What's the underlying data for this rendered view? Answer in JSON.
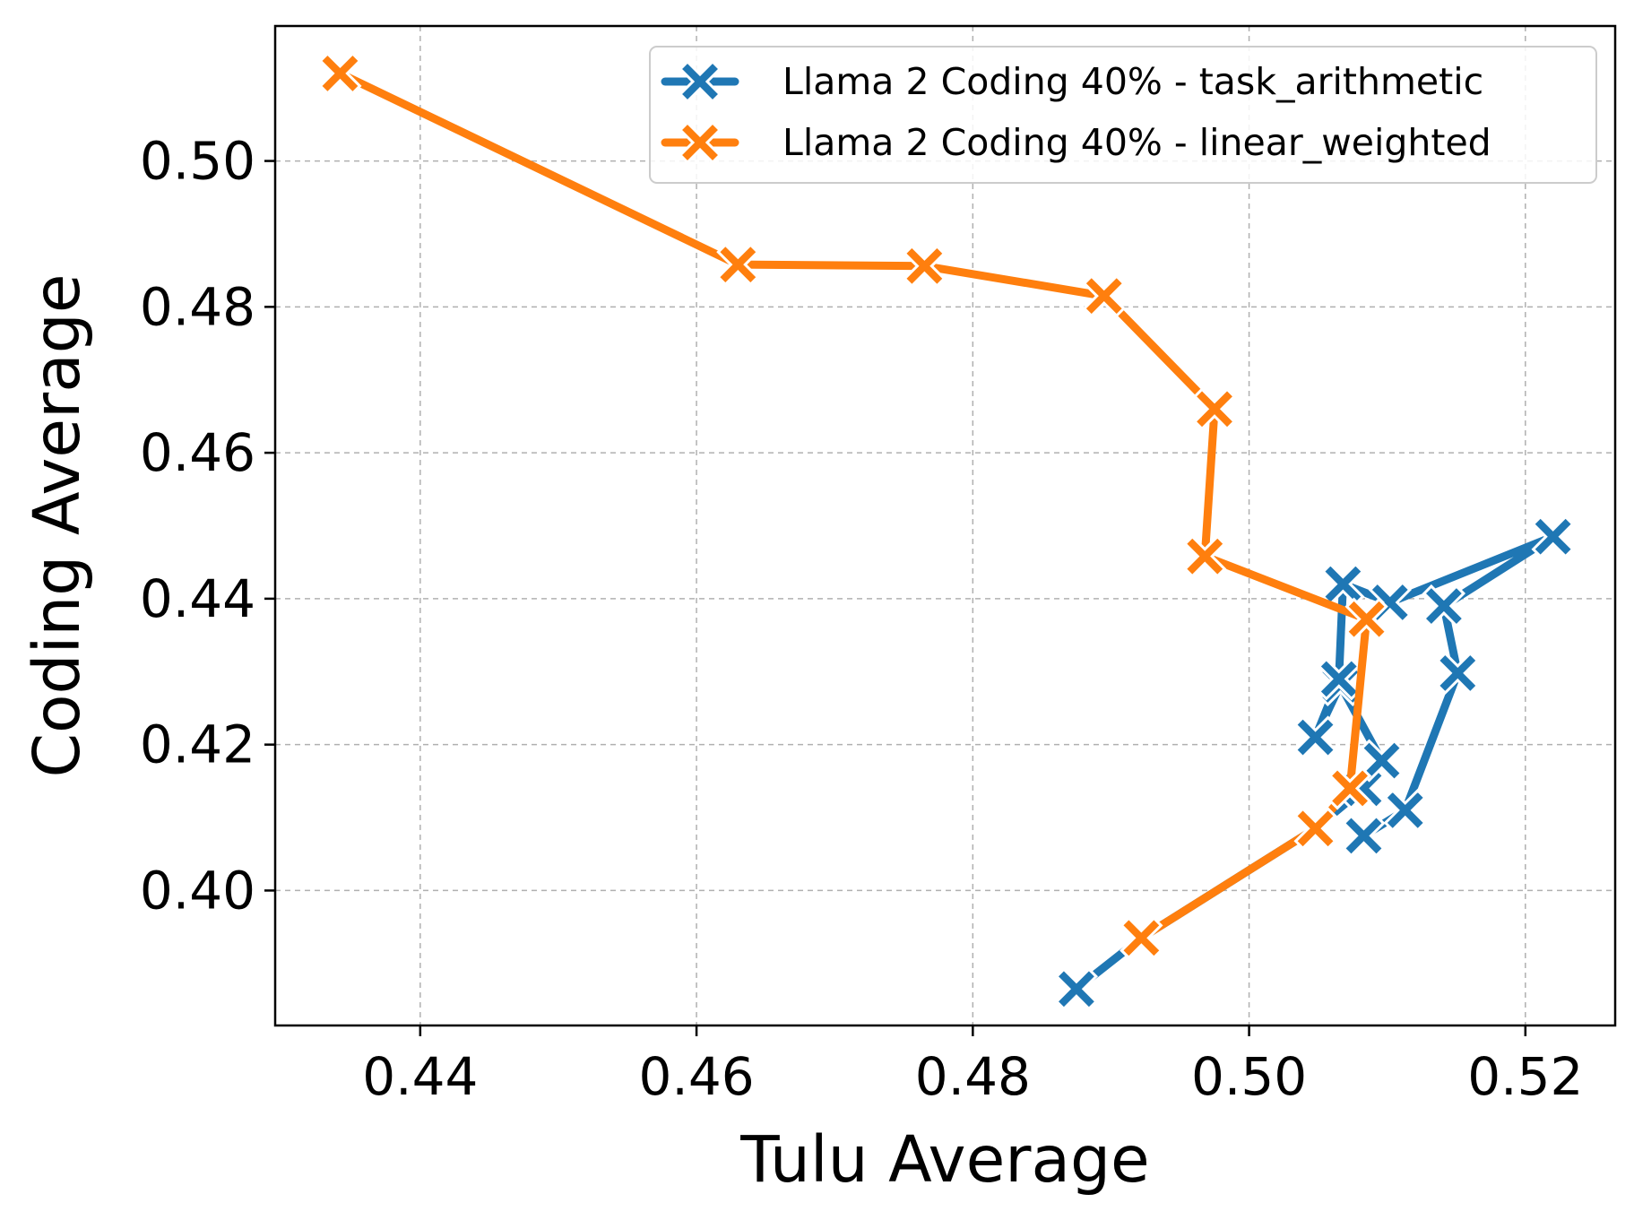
{
  "chart_data": {
    "type": "line",
    "xlabel": "Tulu Average",
    "ylabel": "Coding Average",
    "xlim": [
      0.4295,
      0.5265
    ],
    "ylim": [
      0.3815,
      0.5185
    ],
    "xticks": [
      0.44,
      0.46,
      0.48,
      0.5,
      0.52
    ],
    "xtick_labels": [
      "0.44",
      "0.46",
      "0.48",
      "0.50",
      "0.52"
    ],
    "yticks": [
      0.4,
      0.42,
      0.44,
      0.46,
      0.48,
      0.5
    ],
    "ytick_labels": [
      "0.40",
      "0.42",
      "0.44",
      "0.46",
      "0.48",
      "0.50"
    ],
    "grid": true,
    "legend_position": "top-right",
    "marker": "X",
    "series": [
      {
        "name": "Llama 2 Coding 40% - task_arithmetic",
        "color": "#1f77b4",
        "x": [
          0.4875,
          0.4922,
          0.5048,
          0.5083,
          0.5096,
          0.5066,
          0.5048,
          0.5065,
          0.5068,
          0.5102,
          0.522,
          0.5141,
          0.5151,
          0.5113,
          0.5083
        ],
        "y": [
          0.3865,
          0.3935,
          0.4085,
          0.414,
          0.4178,
          0.4282,
          0.421,
          0.429,
          0.442,
          0.4395,
          0.4485,
          0.439,
          0.4298,
          0.411,
          0.4075
        ]
      },
      {
        "name": "Llama 2 Coding 40% - linear_weighted",
        "color": "#ff7f0e",
        "x": [
          0.4342,
          0.463,
          0.4765,
          0.4895,
          0.4975,
          0.4968,
          0.5085,
          0.5073,
          0.5048,
          0.4922
        ],
        "y": [
          0.512,
          0.4858,
          0.4856,
          0.4815,
          0.466,
          0.4458,
          0.4372,
          0.414,
          0.4085,
          0.3935
        ]
      }
    ]
  }
}
